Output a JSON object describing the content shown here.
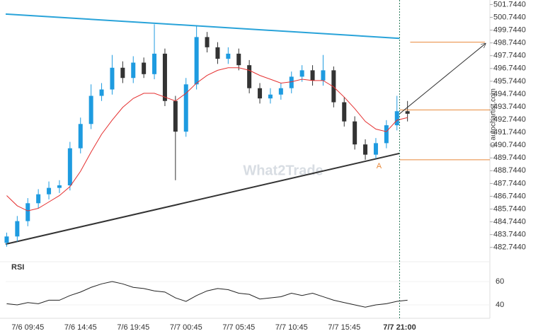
{
  "chart_data": {
    "type": "candlestick",
    "categories": [
      null,
      null,
      "7/6 09:45",
      null,
      null,
      null,
      null,
      "7/6 14:45",
      null,
      null,
      null,
      null,
      "7/6 19:45",
      null,
      null,
      null,
      null,
      "7/7 00:45",
      null,
      null,
      null,
      null,
      "7/7 05:45",
      null,
      null,
      null,
      null,
      "7/7 10:45",
      null,
      null,
      null,
      null,
      "7/7 15:45",
      null,
      null,
      null,
      null,
      null,
      null
    ],
    "open": [
      483.1,
      483.6,
      484.8,
      486.2,
      486.9,
      487.4,
      487.6,
      490.5,
      492.4,
      494.6,
      495.1,
      496.8,
      496.0,
      497.2,
      496.3,
      497.9,
      494.2,
      491.8,
      495.5,
      499.2,
      498.4,
      497.5,
      497.9,
      497.0,
      495.2,
      494.4,
      494.7,
      495.2,
      496.1,
      496.6,
      495.8,
      496.6,
      494.1,
      492.6,
      490.8,
      490.0,
      490.9,
      492.3,
      493.4
    ],
    "high": [
      483.9,
      485.2,
      486.6,
      487.3,
      487.9,
      488.0,
      491.0,
      492.9,
      495.5,
      495.6,
      497.8,
      497.3,
      497.7,
      497.6,
      500.2,
      498.3,
      494.6,
      496.0,
      500.1,
      499.6,
      498.8,
      498.4,
      498.3,
      497.4,
      495.6,
      495.2,
      495.6,
      496.5,
      497.0,
      497.0,
      497.8,
      496.9,
      494.5,
      493.0,
      491.2,
      491.3,
      492.7,
      494.6,
      494.2
    ],
    "low": [
      482.8,
      483.2,
      484.4,
      485.8,
      486.5,
      487.0,
      487.2,
      490.1,
      492.0,
      494.2,
      494.7,
      495.6,
      495.6,
      496.0,
      495.9,
      493.8,
      488.0,
      491.4,
      495.1,
      498.0,
      497.1,
      497.1,
      496.6,
      494.8,
      494.0,
      494.0,
      494.3,
      494.8,
      495.7,
      495.4,
      495.4,
      493.7,
      492.2,
      490.4,
      489.6,
      489.7,
      490.5,
      491.9,
      492.6
    ],
    "close": [
      483.6,
      484.8,
      486.2,
      486.9,
      487.4,
      487.6,
      490.5,
      492.4,
      494.6,
      495.1,
      496.8,
      496.0,
      497.2,
      496.3,
      497.9,
      494.2,
      491.8,
      495.5,
      499.2,
      498.4,
      497.5,
      497.9,
      497.0,
      495.2,
      494.4,
      494.7,
      495.2,
      496.1,
      496.6,
      495.8,
      496.6,
      494.1,
      492.6,
      490.8,
      490.0,
      490.9,
      492.3,
      493.4,
      493.2
    ],
    "ma": [
      486.8,
      486.0,
      485.6,
      485.8,
      486.3,
      486.8,
      487.5,
      488.7,
      490.2,
      491.6,
      492.7,
      493.7,
      494.4,
      494.8,
      494.8,
      494.5,
      494.2,
      494.8,
      495.6,
      496.2,
      496.6,
      496.8,
      496.8,
      496.6,
      496.2,
      495.9,
      495.6,
      495.7,
      495.9,
      495.8,
      495.8,
      495.3,
      494.5,
      493.6,
      492.6,
      492.0,
      491.8,
      492.7,
      492.9
    ],
    "up_color": "#1e9be0",
    "down_color": "#333333",
    "ma_color": "#e53030",
    "resistance": [
      501.0,
      499.1
    ],
    "support": [
      483.0,
      490.1
    ],
    "levels": [
      498.8,
      493.5,
      489.6
    ],
    "arrow": [
      493.2,
      498.7
    ],
    "annotation": "A",
    "cursor_label": "7/7 21:00",
    "watermark": "What2Trade",
    "source": "© autochartist.com",
    "ylim": [
      481.9,
      502.1
    ],
    "yticks": [
      {
        "value": 501.744,
        "label": "501.7440"
      },
      {
        "value": 500.744,
        "label": "500.7440"
      },
      {
        "value": 499.744,
        "label": "499.7440"
      },
      {
        "value": 498.744,
        "label": "498.7440"
      },
      {
        "value": 497.744,
        "label": "497.7440"
      },
      {
        "value": 496.744,
        "label": "496.7440"
      },
      {
        "value": 495.744,
        "label": "495.7440"
      },
      {
        "value": 494.744,
        "label": "494.7440"
      },
      {
        "value": 493.744,
        "label": "493.7440"
      },
      {
        "value": 492.744,
        "label": "492.7440"
      },
      {
        "value": 491.744,
        "label": "491.7440"
      },
      {
        "value": 490.744,
        "label": "490.7440"
      },
      {
        "value": 489.744,
        "label": "489.7440"
      },
      {
        "value": 488.744,
        "label": "488.7440"
      },
      {
        "value": 487.744,
        "label": "487.7440"
      },
      {
        "value": 486.744,
        "label": "486.7440"
      },
      {
        "value": 485.744,
        "label": "485.7440"
      },
      {
        "value": 484.744,
        "label": "484.7440"
      },
      {
        "value": 483.744,
        "label": "483.7440"
      },
      {
        "value": 482.744,
        "label": "482.7440"
      }
    ],
    "rsi": {
      "label": "RSI",
      "values": [
        41,
        40,
        42,
        41,
        44,
        44,
        48,
        51,
        55,
        58,
        60,
        58,
        55,
        54,
        52,
        51,
        46,
        43,
        48,
        52,
        54,
        53,
        50,
        49,
        45,
        46,
        47,
        50,
        48,
        50,
        47,
        44,
        42,
        40,
        38,
        40,
        41,
        43,
        44
      ],
      "ylim": [
        30,
        70
      ],
      "yticks": [
        60,
        40
      ]
    }
  }
}
